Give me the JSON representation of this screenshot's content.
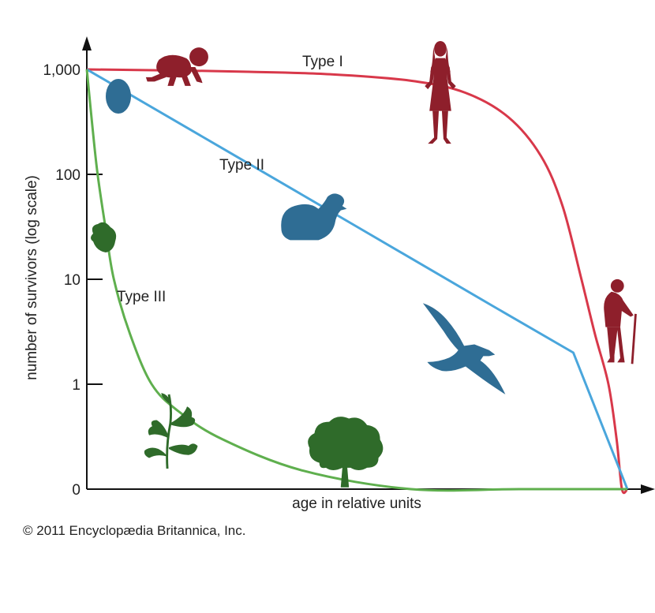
{
  "chart_data": {
    "type": "line",
    "xlabel": "age in relative units",
    "ylabel": "number of survivors (log scale)",
    "y_scale": "log",
    "y_ticks": [
      {
        "value": 0,
        "label": "0"
      },
      {
        "value": 1,
        "label": "1"
      },
      {
        "value": 10,
        "label": "10"
      },
      {
        "value": 100,
        "label": "100"
      },
      {
        "value": 1000,
        "label": "1,000"
      }
    ],
    "xlim": [
      0,
      1
    ],
    "grid": false,
    "legend": "none",
    "series": [
      {
        "name": "Type I",
        "color": "#d8384a",
        "points": [
          [
            0,
            1000
          ],
          [
            0.15,
            980
          ],
          [
            0.3,
            950
          ],
          [
            0.45,
            900
          ],
          [
            0.6,
            780
          ],
          [
            0.7,
            600
          ],
          [
            0.78,
            350
          ],
          [
            0.84,
            150
          ],
          [
            0.88,
            50
          ],
          [
            0.915,
            10
          ],
          [
            0.94,
            3
          ],
          [
            0.965,
            1
          ],
          [
            0.98,
            0.3
          ],
          [
            0.99,
            0.1
          ],
          [
            1.0,
            0
          ]
        ],
        "icons": [
          "baby-icon",
          "woman-icon",
          "elderly-person-icon"
        ]
      },
      {
        "name": "Type II",
        "color": "#4aa6dc",
        "points": [
          [
            0,
            1000
          ],
          [
            0.25,
            178
          ],
          [
            0.5,
            31.6
          ],
          [
            0.75,
            5.6
          ],
          [
            0.9,
            2
          ],
          [
            1.0,
            0
          ]
        ],
        "icons": [
          "egg-icon",
          "bird-chick-icon",
          "eagle-icon"
        ]
      },
      {
        "name": "Type III",
        "color": "#5faf4e",
        "points": [
          [
            0,
            1000
          ],
          [
            0.01,
            300
          ],
          [
            0.02,
            100
          ],
          [
            0.035,
            30
          ],
          [
            0.05,
            10
          ],
          [
            0.08,
            3
          ],
          [
            0.12,
            1
          ],
          [
            0.17,
            0.55
          ],
          [
            0.25,
            0.3
          ],
          [
            0.4,
            0.15
          ],
          [
            0.6,
            0.08
          ],
          [
            0.8,
            0.03
          ],
          [
            1.0,
            0
          ]
        ],
        "icons": [
          "seed-icon",
          "sapling-icon",
          "tree-icon"
        ]
      }
    ]
  },
  "footer": {
    "copyright": "© 2011 Encyclopædia Britannica, Inc."
  },
  "colors": {
    "human": "#8e1f2b",
    "bird": "#2f6d94",
    "plant": "#2f6b2a"
  }
}
